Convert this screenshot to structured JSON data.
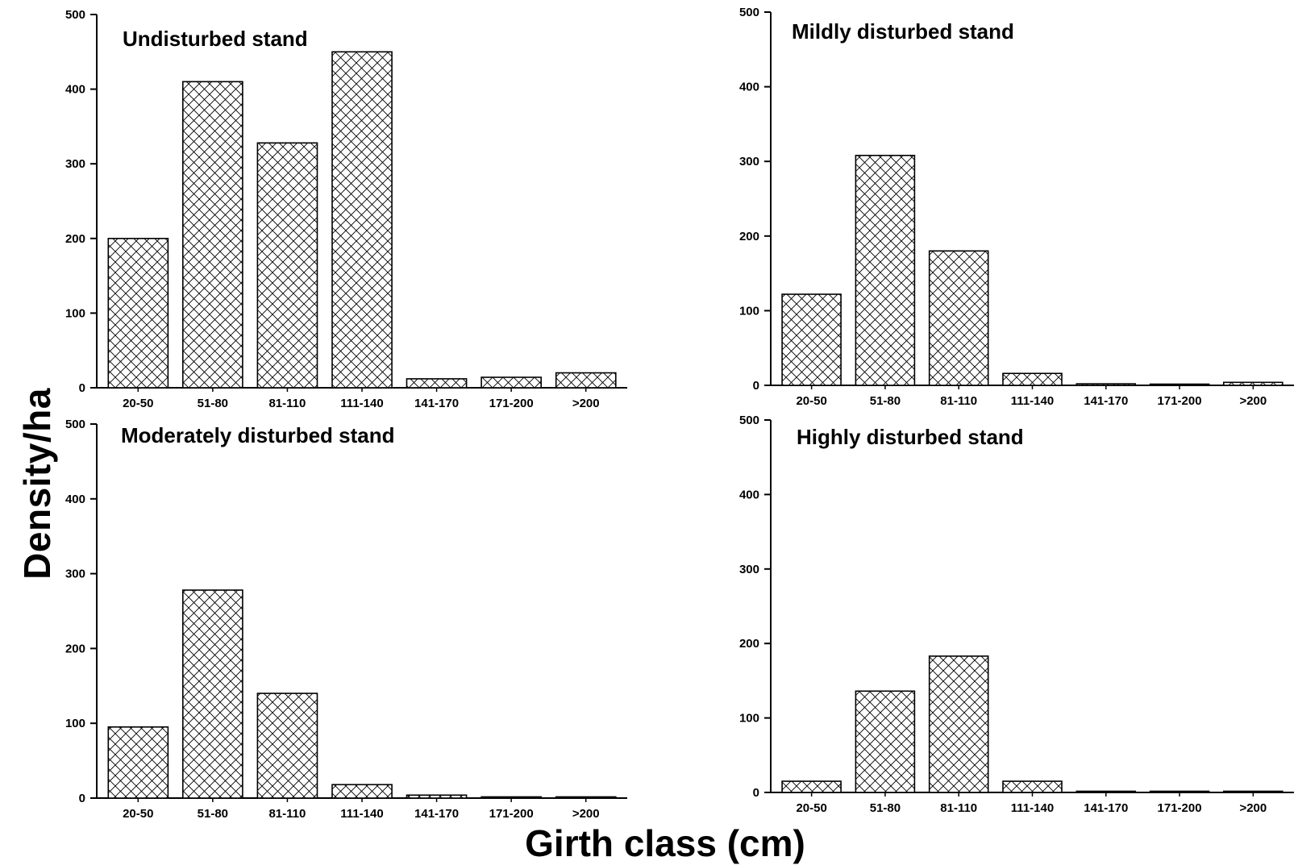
{
  "figure": {
    "ylabel": "Density/ha",
    "xlabel": "Girth class (cm)"
  },
  "chart_data": [
    {
      "type": "bar",
      "title": "Undisturbed stand",
      "categories": [
        "20-50",
        "51-80",
        "81-110",
        "111-140",
        "141-170",
        "171-200",
        ">200"
      ],
      "values": [
        200,
        410,
        328,
        450,
        12,
        14,
        20
      ],
      "ylim": [
        0,
        500
      ],
      "yticks": [
        0,
        100,
        200,
        300,
        400,
        500
      ],
      "fill_pattern": "crosshatch",
      "grid": false
    },
    {
      "type": "bar",
      "title": "Mildly disturbed stand",
      "categories": [
        "20-50",
        "51-80",
        "81-110",
        "111-140",
        "141-170",
        "171-200",
        ">200"
      ],
      "values": [
        122,
        308,
        180,
        16,
        2,
        1,
        4
      ],
      "ylim": [
        0,
        500
      ],
      "yticks": [
        0,
        100,
        200,
        300,
        400,
        500
      ],
      "fill_pattern": "crosshatch",
      "grid": false
    },
    {
      "type": "bar",
      "title": "Moderately disturbed stand",
      "categories": [
        "20-50",
        "51-80",
        "81-110",
        "111-140",
        "141-170",
        "171-200",
        ">200"
      ],
      "values": [
        95,
        278,
        140,
        18,
        4,
        1,
        1
      ],
      "ylim": [
        0,
        500
      ],
      "yticks": [
        0,
        100,
        200,
        300,
        400,
        500
      ],
      "fill_pattern": "crosshatch",
      "grid": false
    },
    {
      "type": "bar",
      "title": "Highly disturbed stand",
      "categories": [
        "20-50",
        "51-80",
        "81-110",
        "111-140",
        "141-170",
        "171-200",
        ">200"
      ],
      "values": [
        15,
        136,
        183,
        15,
        1,
        1,
        1
      ],
      "ylim": [
        0,
        500
      ],
      "yticks": [
        0,
        100,
        200,
        300,
        400,
        500
      ],
      "fill_pattern": "crosshatch",
      "grid": false
    }
  ]
}
